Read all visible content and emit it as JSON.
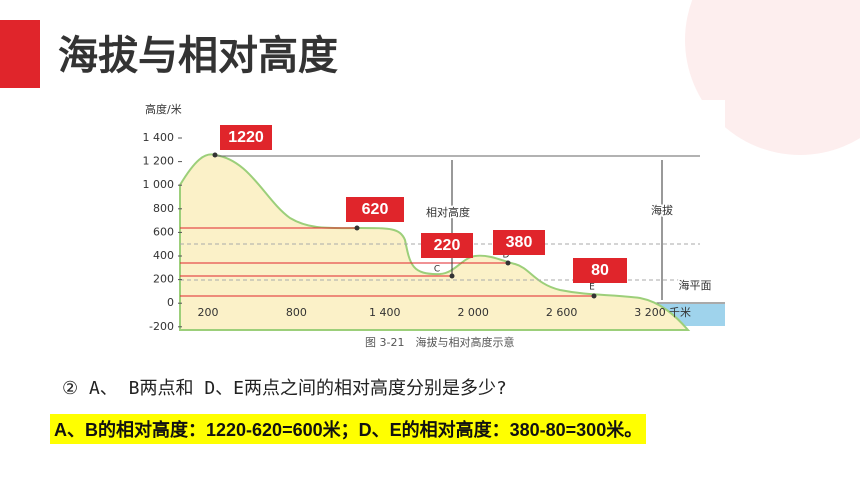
{
  "header": {
    "title": "海拔与相对高度"
  },
  "figure": {
    "y_axis_label": "高度/米",
    "y_tick_labels": [
      "1 400",
      "1 200",
      "1 000",
      "800",
      "600",
      "400",
      "200",
      "0",
      "-200"
    ],
    "x_tick_labels": [
      "200",
      "800",
      "1 400",
      "2 000",
      "2 600",
      "3 200"
    ],
    "x_axis_unit": "千米",
    "caption": "图 3-21　海拔与相对高度示意",
    "annotations": [
      "相对高度",
      "海拔",
      "海平面"
    ],
    "point_labels": [
      "C",
      "D",
      "E"
    ],
    "callouts": [
      "1220",
      "620",
      "220",
      "380",
      "80"
    ]
  },
  "question": "② A、 B两点和 D、E两点之间的相对高度分别是多少?",
  "answer": "A、B的相对高度：1220-620=600米；D、E的相对高度：380-80=300米。"
}
